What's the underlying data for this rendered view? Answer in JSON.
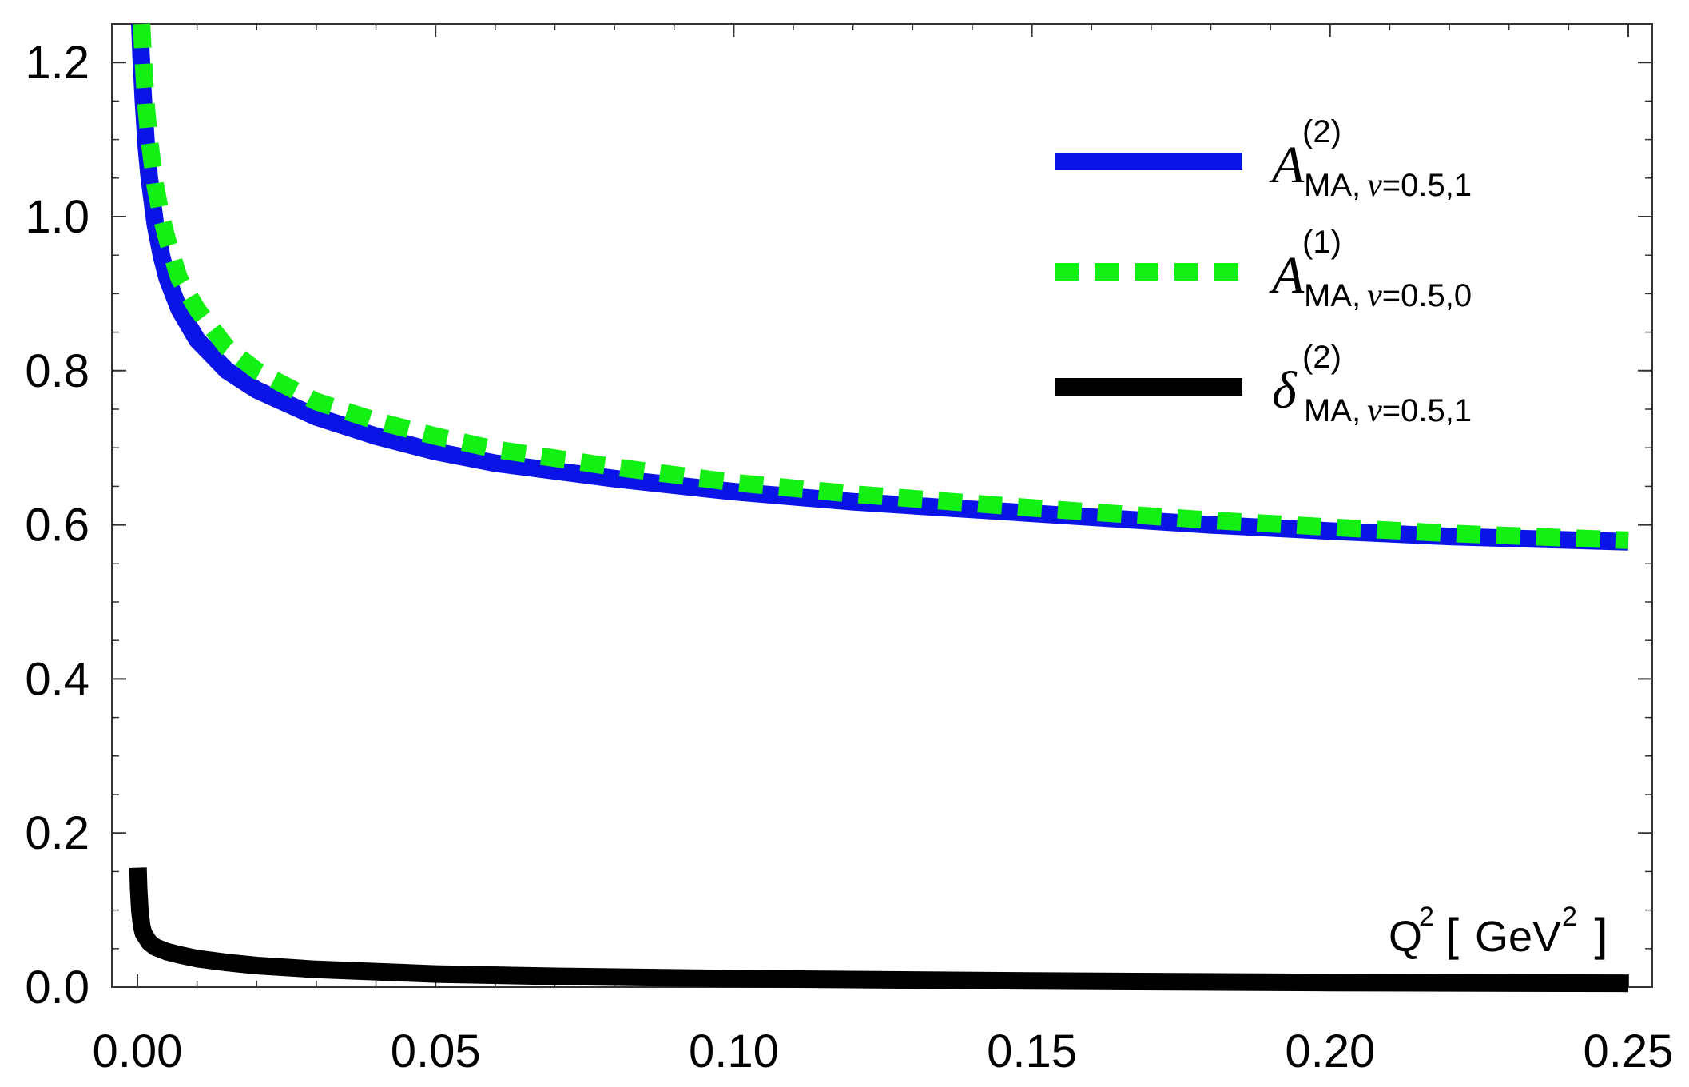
{
  "chart_data": {
    "type": "line",
    "xlabel": {
      "base": "Q",
      "sup": "2",
      "unit_base": "GeV",
      "unit_sup": "2"
    },
    "xlim": [
      0,
      0.25
    ],
    "ylim": [
      0,
      1.25
    ],
    "x_ticks": [
      "0.00",
      "0.05",
      "0.10",
      "0.15",
      "0.20",
      "0.25"
    ],
    "x_tick_values": [
      0,
      0.05,
      0.1,
      0.15,
      0.2,
      0.25
    ],
    "y_ticks": [
      "0.0",
      "0.2",
      "0.4",
      "0.6",
      "0.8",
      "1.0",
      "1.2"
    ],
    "y_tick_values": [
      0,
      0.2,
      0.4,
      0.6,
      0.8,
      1.0,
      1.2
    ],
    "legend_position": "top-right",
    "grid": false,
    "series": [
      {
        "name": {
          "main": "A",
          "sup": "(2)",
          "sub_text": "MA,",
          "sub_italic": "ν",
          "sub_rest": "=0.5,1"
        },
        "color": "#0a14e6",
        "style": "solid",
        "x": [
          0.0004,
          0.0006,
          0.001,
          0.0015,
          0.002,
          0.003,
          0.004,
          0.005,
          0.007,
          0.01,
          0.015,
          0.02,
          0.03,
          0.04,
          0.05,
          0.06,
          0.08,
          0.1,
          0.12,
          0.15,
          0.18,
          0.2,
          0.22,
          0.25
        ],
        "y": [
          1.25,
          1.21,
          1.15,
          1.09,
          1.05,
          0.99,
          0.95,
          0.92,
          0.88,
          0.84,
          0.8,
          0.775,
          0.74,
          0.715,
          0.695,
          0.68,
          0.66,
          0.643,
          0.63,
          0.615,
          0.6,
          0.592,
          0.585,
          0.578
        ]
      },
      {
        "name": {
          "main": "A",
          "sup": "(1)",
          "sub_text": "MA,",
          "sub_italic": "ν",
          "sub_rest": "=0.5,0"
        },
        "color": "#13f013",
        "style": "dashed",
        "x": [
          0.0007,
          0.001,
          0.0015,
          0.002,
          0.003,
          0.004,
          0.005,
          0.007,
          0.01,
          0.015,
          0.02,
          0.03,
          0.04,
          0.05,
          0.06,
          0.08,
          0.1,
          0.12,
          0.15,
          0.18,
          0.2,
          0.22,
          0.25
        ],
        "y": [
          1.25,
          1.2,
          1.14,
          1.1,
          1.04,
          1.0,
          0.97,
          0.92,
          0.88,
          0.83,
          0.8,
          0.76,
          0.735,
          0.715,
          0.698,
          0.675,
          0.655,
          0.64,
          0.622,
          0.606,
          0.597,
          0.589,
          0.58
        ]
      },
      {
        "name": {
          "main": "δ",
          "sup": "(2)",
          "sub_text": "MA,",
          "sub_italic": "ν",
          "sub_rest": "=0.5,1"
        },
        "color": "#000000",
        "style": "solid",
        "x": [
          0.0001,
          0.0002,
          0.0004,
          0.0007,
          0.001,
          0.002,
          0.003,
          0.005,
          0.007,
          0.01,
          0.015,
          0.02,
          0.03,
          0.05,
          0.07,
          0.1,
          0.15,
          0.2,
          0.25
        ],
        "y": [
          0.155,
          0.128,
          0.1,
          0.08,
          0.07,
          0.058,
          0.052,
          0.046,
          0.042,
          0.037,
          0.032,
          0.028,
          0.023,
          0.017,
          0.014,
          0.011,
          0.008,
          0.006,
          0.005
        ]
      }
    ]
  }
}
